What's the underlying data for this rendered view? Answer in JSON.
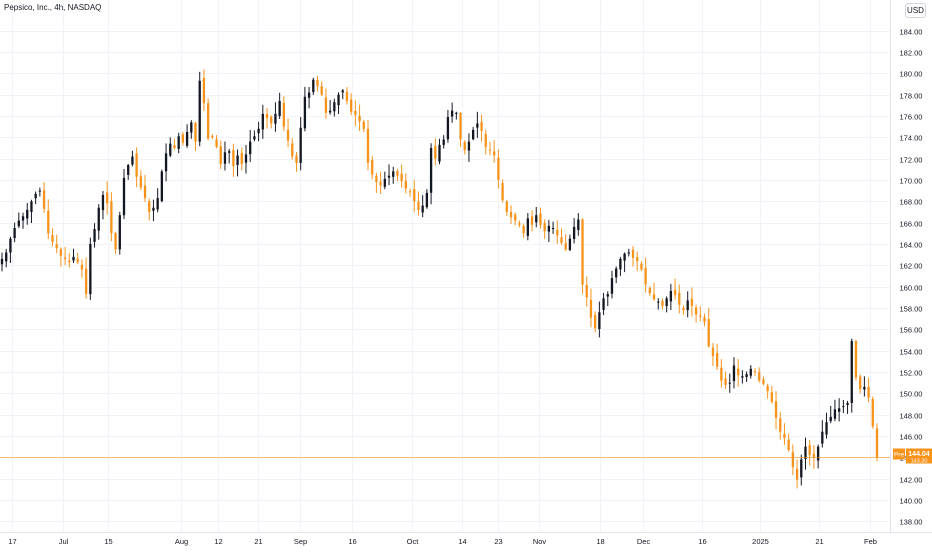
{
  "header": {
    "title": "Pepsico, Inc., 4h, NASDAQ",
    "currency": "USD"
  },
  "price_tags": {
    "pre_label": "Pre",
    "pre_value": "144.04",
    "pre_sub": "143.30"
  },
  "colors": {
    "up": "#131722",
    "down": "#f7931a",
    "grid": "#f0f3fa",
    "price_line": "#f7931a",
    "axis_text": "#131722"
  },
  "chart_data": {
    "type": "candlestick",
    "title": "Pepsico, Inc., 4h, NASDAQ",
    "ylabel": "USD",
    "ylim": [
      137,
      185
    ],
    "y_ticks": [
      138,
      140,
      142,
      144,
      146,
      148,
      150,
      152,
      154,
      156,
      158,
      160,
      162,
      164,
      166,
      168,
      170,
      172,
      174,
      176,
      178,
      180,
      182,
      184
    ],
    "x_ticks": [
      "17",
      "Jul",
      "15",
      "Aug",
      "12",
      "21",
      "Sep",
      "16",
      "Oct",
      "14",
      "23",
      "Nov",
      "18",
      "Dec",
      "16",
      "2025",
      "21",
      "Feb"
    ],
    "last_price": 144.04,
    "closes": [
      162.6,
      163.2,
      164.5,
      165.5,
      166.2,
      166.6,
      167.2,
      168.0,
      168.7,
      169.0,
      167.3,
      165.0,
      164.2,
      163.6,
      162.9,
      162.6,
      162.3,
      162.8,
      162.3,
      161.6,
      159.3,
      164.0,
      165.4,
      167.4,
      168.6,
      167.8,
      165.0,
      163.5,
      166.7,
      170.2,
      171.4,
      172.2,
      170.3,
      169.3,
      168.3,
      167.0,
      167.4,
      168.3,
      170.8,
      172.5,
      173.4,
      173.0,
      174.1,
      173.5,
      174.5,
      175.4,
      173.6,
      179.3,
      177.2,
      173.9,
      174.0,
      173.1,
      171.5,
      172.6,
      172.7,
      171.3,
      172.3,
      171.5,
      172.4,
      173.6,
      174.1,
      174.8,
      176.2,
      175.8,
      175.3,
      176.2,
      177.4,
      175.0,
      173.7,
      172.2,
      171.6,
      174.9,
      177.8,
      178.2,
      179.4,
      178.8,
      178.0,
      176.3,
      176.5,
      177.3,
      178.0,
      178.4,
      177.4,
      176.4,
      176.1,
      175.5,
      174.8,
      171.6,
      170.5,
      169.8,
      169.5,
      170.1,
      170.4,
      170.8,
      170.4,
      169.9,
      169.2,
      168.9,
      168.0,
      167.2,
      167.6,
      168.8,
      173.0,
      172.0,
      173.3,
      173.8,
      175.9,
      176.5,
      176.3,
      173.8,
      172.8,
      173.6,
      174.7,
      175.3,
      174.6,
      173.1,
      172.8,
      172.3,
      170.0,
      168.1,
      167.0,
      166.5,
      166.2,
      165.8,
      165.0,
      166.4,
      165.8,
      166.7,
      165.8,
      165.2,
      165.7,
      165.5,
      164.8,
      164.1,
      163.5,
      164.5,
      165.6,
      166.3,
      160.2,
      159.0,
      157.1,
      156.1,
      157.6,
      158.9,
      159.3,
      160.8,
      161.7,
      162.6,
      163.1,
      163.2,
      162.7,
      162.4,
      161.6,
      160.2,
      159.4,
      158.8,
      158.6,
      158.2,
      158.9,
      159.6,
      159.2,
      158.3,
      157.8,
      158.7,
      158.2,
      157.4,
      157.2,
      156.7,
      154.4,
      153.5,
      152.5,
      151.2,
      150.8,
      151.0,
      152.6,
      151.7,
      151.6,
      151.8,
      152.3,
      152.0,
      151.2,
      150.9,
      150.2,
      149.2,
      147.7,
      146.4,
      145.8,
      144.7,
      143.1,
      141.9,
      143.8,
      145.0,
      144.2,
      144.0,
      145.0,
      146.4,
      147.3,
      147.8,
      148.5,
      148.6,
      148.8,
      149.1,
      154.9,
      151.5,
      150.4,
      150.6,
      149.6,
      146.9,
      144.0
    ],
    "note": "closes are approximate 4h closing prices read from the candlestick chart; one value per candle, left to right"
  }
}
